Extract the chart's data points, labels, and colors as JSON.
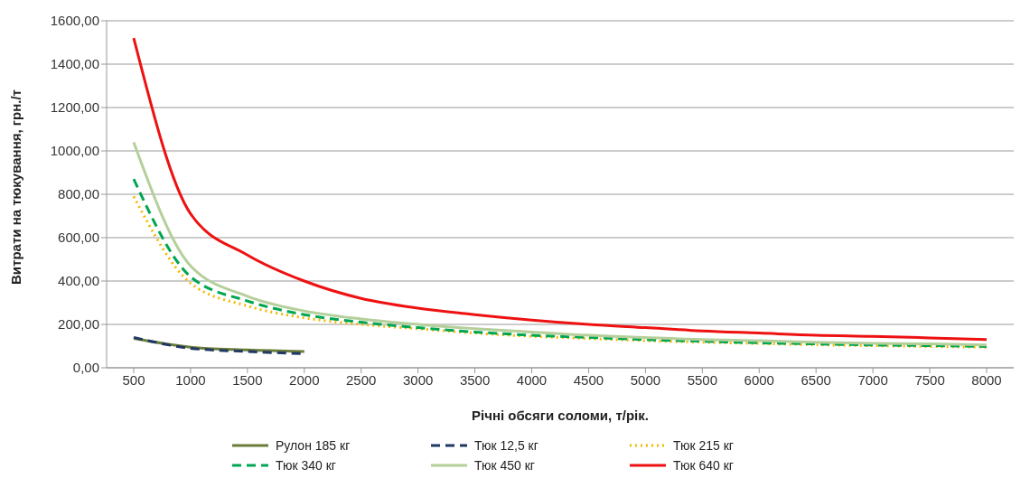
{
  "chart_data": {
    "type": "line",
    "xlabel": "Річні обсяги соломи, т/рік.",
    "ylabel": "Витрати на тюкування, грн./т",
    "categories": [
      "500",
      "1000",
      "1500",
      "2000",
      "2500",
      "3000",
      "3500",
      "4000",
      "4500",
      "5000",
      "5500",
      "6000",
      "6500",
      "7000",
      "7500",
      "8000"
    ],
    "ylim": [
      0,
      1600
    ],
    "yticks": [
      {
        "value": 0,
        "label": "0,00"
      },
      {
        "value": 200,
        "label": "200,00"
      },
      {
        "value": 400,
        "label": "400,00"
      },
      {
        "value": 600,
        "label": "600,00"
      },
      {
        "value": 800,
        "label": "800,00"
      },
      {
        "value": 1000,
        "label": "1000,00"
      },
      {
        "value": 1200,
        "label": "1200,00"
      },
      {
        "value": 1400,
        "label": "1400,00"
      },
      {
        "value": 1600,
        "label": "1600,00"
      }
    ],
    "grid": "y",
    "legend": "bottom",
    "marker": "none",
    "series": [
      {
        "name": "Рулон 185 кг",
        "color": "#6b7d3a",
        "line_style": "solid",
        "values": [
          135,
          95,
          82,
          75,
          null,
          null,
          null,
          null,
          null,
          null,
          null,
          null,
          null,
          null,
          null,
          null
        ]
      },
      {
        "name": "Тюк 12,5 кг",
        "color": "#1f3864",
        "line_style": "dashed",
        "values": [
          140,
          90,
          75,
          65,
          null,
          null,
          null,
          null,
          null,
          null,
          null,
          null,
          null,
          null,
          null,
          null
        ]
      },
      {
        "name": "Тюк 215 кг",
        "color": "#f5b800",
        "line_style": "dotted",
        "values": [
          790,
          390,
          285,
          230,
          200,
          180,
          160,
          145,
          135,
          125,
          118,
          112,
          106,
          102,
          98,
          95
        ]
      },
      {
        "name": "Тюк 340 кг",
        "color": "#00a651",
        "line_style": "dashed",
        "values": [
          870,
          420,
          308,
          245,
          210,
          185,
          165,
          150,
          140,
          130,
          122,
          115,
          110,
          105,
          102,
          98
        ]
      },
      {
        "name": "Тюк 450 кг",
        "color": "#b5cf9a",
        "line_style": "solid",
        "values": [
          1040,
          470,
          330,
          262,
          225,
          200,
          180,
          165,
          150,
          140,
          130,
          125,
          118,
          113,
          110,
          105
        ]
      },
      {
        "name": "Тюк 640 кг",
        "color": "#ee1111",
        "line_style": "solid",
        "values": [
          1520,
          710,
          520,
          400,
          320,
          275,
          245,
          220,
          200,
          185,
          170,
          160,
          150,
          145,
          138,
          130
        ]
      }
    ]
  }
}
